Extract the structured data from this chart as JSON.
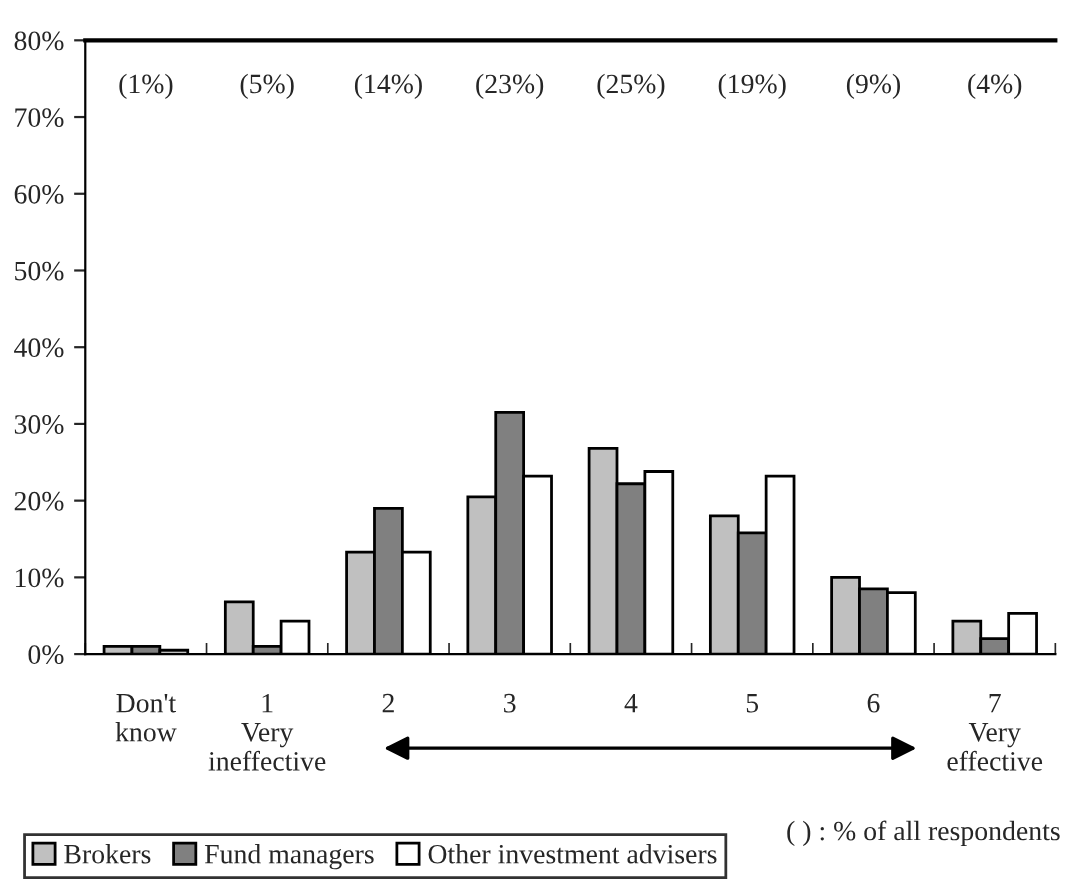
{
  "chart_data": {
    "type": "bar",
    "categories": [
      "Don't\nknow",
      "1\nVery\nineffective",
      "2",
      "3",
      "4",
      "5",
      "6",
      "7\nVery\neffective"
    ],
    "series": [
      {
        "name": "Brokers",
        "color": "#c0c0c0",
        "values": [
          1,
          6.8,
          13.3,
          20.5,
          26.8,
          18,
          10,
          4.3
        ]
      },
      {
        "name": "Fund managers",
        "color": "#808080",
        "values": [
          1,
          1,
          19,
          31.5,
          22.2,
          15.8,
          8.5,
          2
        ]
      },
      {
        "name": "Other investment advisers",
        "color": "#ffffff",
        "values": [
          0.5,
          4.3,
          13.3,
          23.2,
          23.8,
          23.2,
          8,
          5.3
        ]
      }
    ],
    "ylim": [
      0,
      80
    ],
    "yticks": [
      {
        "value": 0,
        "label": "0%"
      },
      {
        "value": 10,
        "label": "10%"
      },
      {
        "value": 20,
        "label": "20%"
      },
      {
        "value": 30,
        "label": "30%"
      },
      {
        "value": 40,
        "label": "40%"
      },
      {
        "value": 50,
        "label": "50%"
      },
      {
        "value": 60,
        "label": "60%"
      },
      {
        "value": 70,
        "label": "70%"
      },
      {
        "value": 80,
        "label": "80%"
      }
    ],
    "annotations": [
      "(1%)",
      "(5%)",
      "(14%)",
      "(23%)",
      "(25%)",
      "(19%)",
      "(9%)",
      "(4%)",
      "( ) : % of all respondents"
    ],
    "grid": false,
    "legend": "bottom"
  }
}
